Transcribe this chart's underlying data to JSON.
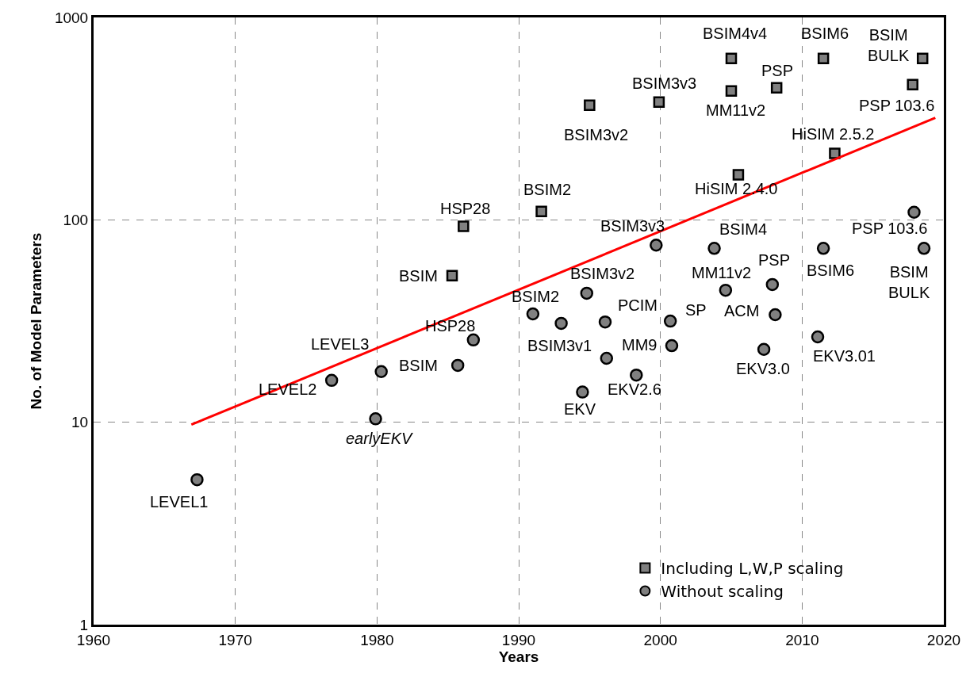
{
  "chart_data": {
    "type": "scatter",
    "xlabel": "Years",
    "ylabel": "No. of Model Parameters",
    "xlim": [
      1960,
      2020
    ],
    "xticks": [
      1960,
      1970,
      1980,
      1990,
      2000,
      2010,
      2020
    ],
    "ylim": [
      1,
      1000
    ],
    "yticks": [
      1,
      10,
      100,
      1000
    ],
    "log": "y",
    "grid": true,
    "legend": "bottom right",
    "series": [
      {
        "name": "Including L,W,P scaling",
        "color": "#808080",
        "marker": "square",
        "x": [
          1985.3,
          1986.1,
          1991.6,
          1995.0,
          1999.9,
          2005.0,
          2005.0,
          2008.2,
          2005.5,
          2011.5,
          2018.5,
          2017.8,
          2012.3
        ],
        "values": [
          53,
          93,
          110,
          368,
          382,
          627,
          433,
          449,
          167,
          627,
          627,
          466,
          213
        ]
      },
      {
        "name": "Without scaling",
        "color": "#808080",
        "marker": "circle",
        "x": [
          1967.3,
          1976.8,
          1980.3,
          1979.9,
          1985.7,
          1986.8,
          1991.0,
          1993.0,
          1994.8,
          1996.1,
          1996.2,
          1998.3,
          1994.5,
          1999.7,
          2000.7,
          2000.8,
          2003.8,
          2004.6,
          2007.9,
          2008.1,
          2007.3,
          2011.1,
          2011.5,
          2017.9,
          2018.6
        ],
        "values": [
          5.2,
          16.1,
          17.8,
          10.4,
          19.1,
          25.5,
          34.3,
          30.8,
          43.4,
          31.3,
          20.7,
          17.1,
          14.1,
          75,
          31.6,
          23.9,
          72.3,
          44.9,
          47.9,
          34.0,
          22.9,
          26.4,
          72.3,
          109,
          72.3
        ]
      },
      {
        "type": "line",
        "color": "#ff0000",
        "marker": "none",
        "line_style": "solid",
        "x": [
          1966.9,
          2019.4
        ],
        "values": [
          9.73,
          319
        ]
      }
    ],
    "annotations": [
      {
        "text": "BSIM",
        "x": 1985.3,
        "y": 53
      },
      {
        "text": "HSP28",
        "x": 1986.1,
        "y": 93
      },
      {
        "text": "BSIM2",
        "x": 1991.6,
        "y": 110
      },
      {
        "text": "BSIM3v2",
        "x": 1995.0,
        "y": 368
      },
      {
        "text": "BSIM3v3",
        "x": 1999.9,
        "y": 382
      },
      {
        "text": "BSIM4v4",
        "x": 2005.0,
        "y": 627
      },
      {
        "text": "MM11v2",
        "x": 2005.0,
        "y": 433
      },
      {
        "text": "PSP",
        "x": 2008.2,
        "y": 449
      },
      {
        "text": "HiSIM 2.4.0",
        "x": 2005.5,
        "y": 167
      },
      {
        "text": "BSIM6",
        "x": 2011.5,
        "y": 627
      },
      {
        "text": "BSIM\nBULK",
        "x": 2018.5,
        "y": 627
      },
      {
        "text": "PSP 103.6",
        "x": 2017.8,
        "y": 466
      },
      {
        "text": "HiSIM 2.5.2",
        "x": 2012.3,
        "y": 213
      },
      {
        "text": "LEVEL1",
        "x": 1967.3,
        "y": 5.2
      },
      {
        "text": "LEVEL2",
        "x": 1976.8,
        "y": 16.1
      },
      {
        "text": "LEVEL3",
        "x": 1980.3,
        "y": 17.8
      },
      {
        "text": "earlyEKV",
        "x": 1979.9,
        "y": 10.4
      },
      {
        "text": "BSIM",
        "x": 1985.7,
        "y": 19.1
      },
      {
        "text": "HSP28",
        "x": 1986.8,
        "y": 25.5
      },
      {
        "text": "BSIM2",
        "x": 1991.0,
        "y": 34.3
      },
      {
        "text": "BSIM3v1",
        "x": 1993.0,
        "y": 30.8
      },
      {
        "text": "BSIM3v2",
        "x": 1994.8,
        "y": 43.4
      },
      {
        "text": "PCIM",
        "x": 1996.1,
        "y": 31.3
      },
      {
        "text": "EKV2.6",
        "x": 1998.3,
        "y": 17.1
      },
      {
        "text": "EKV",
        "x": 1994.5,
        "y": 14.1
      },
      {
        "text": "BSIM3v3",
        "x": 1999.7,
        "y": 75
      },
      {
        "text": "SP",
        "x": 2000.7,
        "y": 31.6
      },
      {
        "text": "MM9",
        "x": 2000.8,
        "y": 23.9
      },
      {
        "text": "BSIM4",
        "x": 2003.8,
        "y": 72.3
      },
      {
        "text": "MM11v2",
        "x": 2004.6,
        "y": 44.9
      },
      {
        "text": "PSP",
        "x": 2007.9,
        "y": 47.9
      },
      {
        "text": "ACM",
        "x": 2008.1,
        "y": 34.0
      },
      {
        "text": "EKV3.0",
        "x": 2007.3,
        "y": 22.9
      },
      {
        "text": "EKV3.01",
        "x": 2011.1,
        "y": 26.4
      },
      {
        "text": "BSIM6",
        "x": 2011.5,
        "y": 72.3
      },
      {
        "text": "PSP 103.6",
        "x": 2017.9,
        "y": 109
      },
      {
        "text": "BSIM\nBULK",
        "x": 2018.6,
        "y": 72.3
      }
    ]
  }
}
